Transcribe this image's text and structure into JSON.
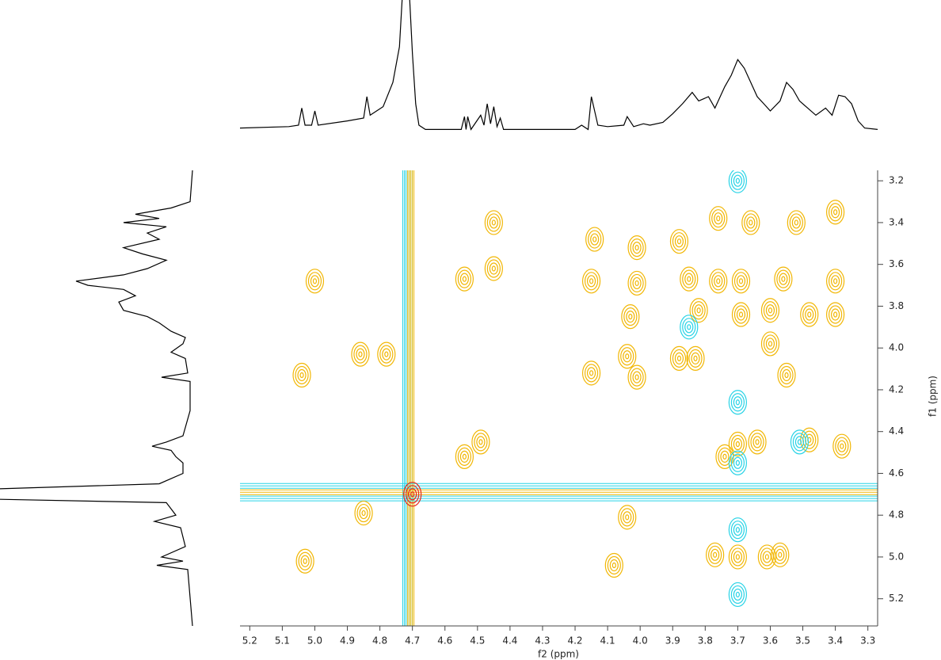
{
  "chart_data": {
    "type": "contour",
    "xlabel": "f2 (ppm)",
    "ylabel": "f1 (ppm)",
    "xlim": [
      5.23,
      3.27
    ],
    "ylim": [
      3.15,
      5.33
    ],
    "xticks": [
      5.2,
      5.1,
      {
        "value": 5,
        "label": "5.0"
      },
      4.9,
      4.8,
      4.7,
      4.6,
      4.5,
      4.4,
      4.3,
      4.2,
      4.1,
      {
        "value": 4,
        "label": "4.0"
      },
      3.9,
      3.8,
      3.7,
      3.6,
      3.5,
      3.4,
      3.3
    ],
    "yticks": [
      3.2,
      3.4,
      3.6,
      3.8,
      {
        "value": 4,
        "label": "4.0"
      },
      4.2,
      4.4,
      4.6,
      4.8,
      {
        "value": 5,
        "label": "5.0"
      },
      5.2
    ],
    "peaks": {
      "x": [
        5.0,
        4.45,
        4.45,
        4.54,
        4.14,
        4.01,
        4.01,
        4.15,
        4.03,
        4.04,
        4.15,
        4.01,
        3.88,
        3.76,
        3.66,
        3.52,
        3.4,
        3.85,
        3.76,
        3.69,
        3.69,
        3.56,
        3.4,
        3.48,
        3.4,
        3.6,
        3.82,
        3.6,
        5.04,
        4.86,
        4.78,
        4.49,
        4.54,
        3.7,
        3.64,
        3.48,
        3.38,
        3.74,
        3.55,
        4.85,
        5.03,
        3.77,
        3.7,
        3.61,
        3.57,
        4.08,
        4.04,
        3.88,
        3.83,
        3.7,
        3.7,
        3.7,
        3.7,
        3.7,
        3.51,
        3.85,
        4.7
      ],
      "y": [
        3.68,
        3.4,
        3.62,
        3.67,
        3.48,
        3.52,
        3.69,
        3.68,
        3.85,
        4.04,
        4.12,
        4.14,
        3.49,
        3.38,
        3.4,
        3.4,
        3.35,
        3.67,
        3.68,
        3.68,
        3.84,
        3.67,
        3.68,
        3.84,
        3.84,
        3.82,
        3.82,
        3.98,
        4.13,
        4.03,
        4.03,
        4.45,
        4.52,
        4.46,
        4.45,
        4.44,
        4.47,
        4.52,
        4.13,
        4.79,
        5.02,
        4.99,
        5.0,
        5.0,
        4.99,
        5.04,
        4.81,
        4.05,
        4.05,
        4.26,
        4.55,
        4.87,
        5.18,
        3.2,
        4.45,
        3.9,
        4.7
      ],
      "color": [
        "#f2b705",
        "#f2b705",
        "#f2b705",
        "#f2b705",
        "#f2b705",
        "#f2b705",
        "#f2b705",
        "#f2b705",
        "#f2b705",
        "#f2b705",
        "#f2b705",
        "#f2b705",
        "#f2b705",
        "#f2b705",
        "#f2b705",
        "#f2b705",
        "#f2b705",
        "#f2b705",
        "#f2b705",
        "#f2b705",
        "#f2b705",
        "#f2b705",
        "#f2b705",
        "#f2b705",
        "#f2b705",
        "#f2b705",
        "#f2b705",
        "#f2b705",
        "#f2b705",
        "#f2b705",
        "#f2b705",
        "#f2b705",
        "#f2b705",
        "#f2b705",
        "#f2b705",
        "#f2b705",
        "#f2b705",
        "#f2b705",
        "#f2b705",
        "#f2b705",
        "#f2b705",
        "#f2b705",
        "#f2b705",
        "#f2b705",
        "#f2b705",
        "#f2b705",
        "#f2b705",
        "#f2b705",
        "#f2b705",
        "#27d3e6",
        "#27d3e6",
        "#27d3e6",
        "#27d3e6",
        "#27d3e6",
        "#27d3e6",
        "#27d3e6",
        "#e8261a"
      ]
    },
    "ridges": {
      "x": [
        4.71,
        4.72,
        4.705,
        null,
        null,
        null
      ],
      "y": [
        null,
        null,
        null,
        4.66,
        4.72,
        4.69
      ],
      "color": [
        "#27d3e6",
        "#27d3e6",
        "#f2b705",
        "#27d3e6",
        "#27d3e6",
        "#f2b705"
      ]
    },
    "projection_f2": {
      "x": [
        5.23,
        5.08,
        5.05,
        5.04,
        5.03,
        5.01,
        5.0,
        4.99,
        4.9,
        4.85,
        4.84,
        4.83,
        4.79,
        4.76,
        4.74,
        4.73,
        4.71,
        4.7,
        4.69,
        4.68,
        4.66,
        4.55,
        4.54,
        4.535,
        4.53,
        4.52,
        4.49,
        4.48,
        4.47,
        4.46,
        4.45,
        4.44,
        4.43,
        4.42,
        4.2,
        4.18,
        4.16,
        4.15,
        4.13,
        4.1,
        4.05,
        4.04,
        4.02,
        3.99,
        3.97,
        3.93,
        3.9,
        3.87,
        3.84,
        3.82,
        3.79,
        3.77,
        3.74,
        3.72,
        3.7,
        3.68,
        3.66,
        3.64,
        3.62,
        3.6,
        3.57,
        3.55,
        3.53,
        3.51,
        3.49,
        3.46,
        3.43,
        3.41,
        3.39,
        3.37,
        3.35,
        3.33,
        3.31,
        3.27
      ],
      "intensity": [
        0.03,
        0.04,
        0.05,
        0.17,
        0.05,
        0.05,
        0.15,
        0.05,
        0.08,
        0.1,
        0.25,
        0.12,
        0.18,
        0.35,
        0.6,
        1.0,
        1.0,
        0.55,
        0.2,
        0.05,
        0.02,
        0.02,
        0.11,
        0.02,
        0.11,
        0.02,
        0.12,
        0.05,
        0.2,
        0.06,
        0.18,
        0.04,
        0.1,
        0.02,
        0.02,
        0.05,
        0.02,
        0.25,
        0.05,
        0.04,
        0.05,
        0.11,
        0.04,
        0.06,
        0.05,
        0.07,
        0.13,
        0.2,
        0.28,
        0.22,
        0.25,
        0.17,
        0.32,
        0.4,
        0.51,
        0.45,
        0.35,
        0.25,
        0.2,
        0.15,
        0.22,
        0.35,
        0.3,
        0.22,
        0.18,
        0.12,
        0.17,
        0.12,
        0.26,
        0.25,
        0.2,
        0.08,
        0.03,
        0.02
      ]
    },
    "projection_f1": {
      "x": [
        3.15,
        3.3,
        3.33,
        3.36,
        3.38,
        3.4,
        3.42,
        3.45,
        3.48,
        3.52,
        3.55,
        3.58,
        3.62,
        3.65,
        3.68,
        3.7,
        3.72,
        3.75,
        3.78,
        3.82,
        3.85,
        3.88,
        3.92,
        3.95,
        3.98,
        4.02,
        4.05,
        4.12,
        4.14,
        4.16,
        4.3,
        4.42,
        4.45,
        4.47,
        4.49,
        4.52,
        4.55,
        4.6,
        4.65,
        4.68,
        4.72,
        4.74,
        4.77,
        4.8,
        4.83,
        4.86,
        4.95,
        5.0,
        5.02,
        5.04,
        5.06,
        5.33
      ],
      "intensity": [
        0.01,
        0.02,
        0.1,
        0.25,
        0.15,
        0.3,
        0.12,
        0.2,
        0.15,
        0.3,
        0.22,
        0.12,
        0.2,
        0.3,
        0.5,
        0.45,
        0.3,
        0.25,
        0.32,
        0.3,
        0.2,
        0.15,
        0.1,
        0.04,
        0.05,
        0.1,
        0.04,
        0.03,
        0.14,
        0.02,
        0.02,
        0.05,
        0.12,
        0.18,
        0.1,
        0.08,
        0.05,
        0.05,
        0.15,
        1.0,
        1.0,
        0.12,
        0.1,
        0.08,
        0.17,
        0.06,
        0.04,
        0.14,
        0.05,
        0.16,
        0.03,
        0.01
      ]
    }
  }
}
